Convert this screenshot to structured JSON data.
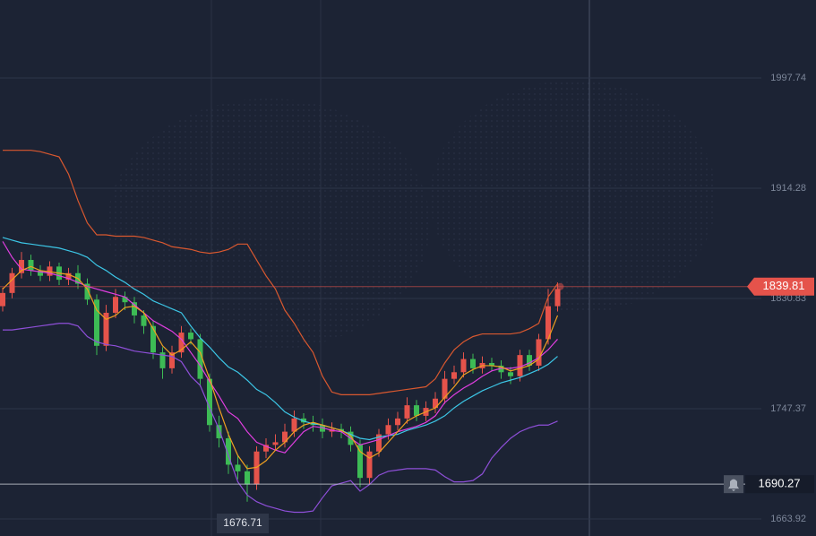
{
  "chart_data": {
    "type": "candlestick",
    "ohlc": {
      "open": [
        1825,
        1835,
        1850,
        1860,
        1852,
        1848,
        1855,
        1845,
        1850,
        1842,
        1830,
        1795,
        1820,
        1832,
        1828,
        1818,
        1810,
        1790,
        1778,
        1790,
        1805,
        1800,
        1770,
        1735,
        1725,
        1705,
        1700,
        1690,
        1715,
        1720,
        1722,
        1730,
        1740,
        1737,
        1735,
        1730,
        1732,
        1730,
        1720,
        1695,
        1715,
        1728,
        1735,
        1740,
        1750,
        1742,
        1748,
        1755,
        1770,
        1775,
        1785,
        1778,
        1782,
        1780,
        1775,
        1772,
        1788,
        1780,
        1800,
        1825
      ],
      "high": [
        1839,
        1854,
        1866,
        1864,
        1856,
        1859,
        1858,
        1854,
        1856,
        1846,
        1834,
        1826,
        1838,
        1836,
        1832,
        1822,
        1814,
        1794,
        1795,
        1810,
        1808,
        1804,
        1774,
        1742,
        1730,
        1712,
        1705,
        1719,
        1725,
        1728,
        1736,
        1746,
        1744,
        1742,
        1740,
        1737,
        1736,
        1734,
        1724,
        1719,
        1732,
        1740,
        1745,
        1756,
        1754,
        1753,
        1760,
        1776,
        1780,
        1790,
        1789,
        1787,
        1786,
        1784,
        1779,
        1792,
        1792,
        1804,
        1838,
        1843
      ],
      "low": [
        1821,
        1831,
        1846,
        1848,
        1844,
        1844,
        1841,
        1841,
        1838,
        1826,
        1788,
        1791,
        1816,
        1822,
        1812,
        1804,
        1785,
        1770,
        1774,
        1786,
        1796,
        1764,
        1730,
        1718,
        1698,
        1694,
        1677,
        1686,
        1710,
        1716,
        1718,
        1726,
        1732,
        1730,
        1725,
        1726,
        1725,
        1715,
        1688,
        1690,
        1711,
        1724,
        1731,
        1736,
        1738,
        1738,
        1744,
        1751,
        1766,
        1771,
        1774,
        1774,
        1776,
        1770,
        1766,
        1768,
        1776,
        1776,
        1796,
        1821
      ],
      "close": [
        1835,
        1850,
        1860,
        1852,
        1848,
        1855,
        1845,
        1850,
        1842,
        1830,
        1795,
        1820,
        1832,
        1828,
        1818,
        1810,
        1790,
        1778,
        1790,
        1805,
        1800,
        1770,
        1735,
        1725,
        1705,
        1700,
        1690,
        1715,
        1720,
        1722,
        1730,
        1740,
        1737,
        1735,
        1730,
        1732,
        1730,
        1720,
        1695,
        1715,
        1728,
        1735,
        1740,
        1750,
        1742,
        1748,
        1755,
        1770,
        1775,
        1785,
        1778,
        1782,
        1780,
        1775,
        1772,
        1788,
        1780,
        1800,
        1825,
        1838
      ]
    },
    "up_color": "#e5534b",
    "down_color": "#3dbb55",
    "series": [
      {
        "color": "#d9582f",
        "values": [
          1943,
          1943,
          1943,
          1943,
          1942,
          1940,
          1938,
          1925,
          1905,
          1888,
          1879,
          1879,
          1878,
          1878,
          1878,
          1877,
          1875,
          1873,
          1870,
          1869,
          1868,
          1866,
          1865,
          1866,
          1868,
          1872,
          1872,
          1860,
          1848,
          1838,
          1822,
          1812,
          1800,
          1790,
          1772,
          1760,
          1758,
          1758,
          1758,
          1758,
          1759,
          1760,
          1761,
          1762,
          1763,
          1764,
          1770,
          1782,
          1792,
          1798,
          1802,
          1804,
          1804,
          1804,
          1804,
          1805,
          1808,
          1812,
          1832,
          1842
        ]
      },
      {
        "color": "#8e4fd8",
        "values": [
          1807,
          1807,
          1808,
          1809,
          1810,
          1811,
          1812,
          1812,
          1810,
          1802,
          1798,
          1796,
          1795,
          1793,
          1791,
          1790,
          1789,
          1788,
          1787,
          1783,
          1772,
          1765,
          1748,
          1732,
          1712,
          1692,
          1682,
          1677,
          1674,
          1672,
          1670,
          1669,
          1669,
          1670,
          1680,
          1689,
          1691,
          1693,
          1685,
          1690,
          1697,
          1700,
          1701,
          1702,
          1702,
          1702,
          1701,
          1696,
          1692,
          1692,
          1693,
          1698,
          1710,
          1718,
          1725,
          1730,
          1733,
          1735,
          1735,
          1738
        ]
      },
      {
        "color": "#3cc6e6",
        "values": [
          1877,
          1875,
          1873,
          1872,
          1871,
          1870,
          1869,
          1867,
          1865,
          1862,
          1856,
          1852,
          1847,
          1843,
          1838,
          1834,
          1829,
          1826,
          1823,
          1820,
          1810,
          1801,
          1794,
          1786,
          1779,
          1775,
          1769,
          1762,
          1758,
          1752,
          1745,
          1741,
          1738,
          1736,
          1735,
          1733,
          1731,
          1728,
          1725,
          1724,
          1726,
          1727,
          1728,
          1731,
          1733,
          1735,
          1738,
          1742,
          1748,
          1753,
          1757,
          1761,
          1764,
          1767,
          1769,
          1771,
          1774,
          1777,
          1781,
          1787
        ]
      },
      {
        "color": "#e03ee0",
        "values": [
          1874,
          1862,
          1853,
          1852,
          1851,
          1850,
          1848,
          1846,
          1843,
          1840,
          1838,
          1836,
          1834,
          1832,
          1826,
          1820,
          1814,
          1810,
          1806,
          1800,
          1790,
          1780,
          1768,
          1757,
          1745,
          1740,
          1730,
          1722,
          1719,
          1716,
          1714,
          1722,
          1730,
          1734,
          1733,
          1731,
          1730,
          1725,
          1720,
          1722,
          1724,
          1727,
          1730,
          1732,
          1734,
          1737,
          1742,
          1752,
          1758,
          1763,
          1767,
          1772,
          1776,
          1778,
          1778,
          1779,
          1782,
          1786,
          1792,
          1800
        ]
      },
      {
        "color": "#f0a020",
        "values": [
          1838,
          1845,
          1852,
          1855,
          1852,
          1851,
          1850,
          1849,
          1846,
          1838,
          1822,
          1815,
          1818,
          1824,
          1825,
          1820,
          1808,
          1795,
          1788,
          1792,
          1798,
          1790,
          1770,
          1748,
          1728,
          1712,
          1702,
          1703,
          1708,
          1716,
          1722,
          1730,
          1735,
          1737,
          1735,
          1733,
          1731,
          1727,
          1715,
          1710,
          1714,
          1722,
          1730,
          1738,
          1742,
          1745,
          1748,
          1756,
          1764,
          1773,
          1777,
          1780,
          1780,
          1779,
          1776,
          1778,
          1780,
          1785,
          1800,
          1818
        ]
      }
    ],
    "ylim": [
      1651.03,
      2056.77
    ],
    "yticks": [
      1663.92,
      1747.37,
      1830.83,
      1914.28,
      1997.74
    ],
    "grid": true,
    "last_price": 1839.81,
    "last_price_color": "#e5534b",
    "alert_price": 1690.27,
    "period_low": 1676.71
  }
}
